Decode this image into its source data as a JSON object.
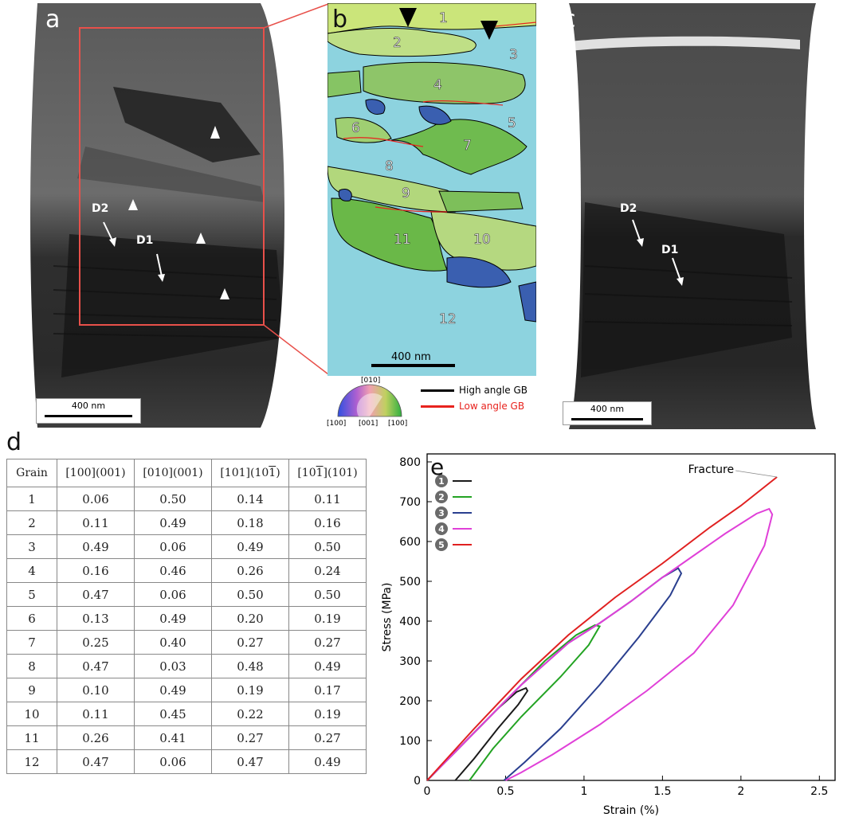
{
  "panel_a": {
    "label": "a",
    "arrows": [
      "D2",
      "D1"
    ],
    "scale_bar": "400 nm"
  },
  "panel_b": {
    "label": "b",
    "grains": [
      "1",
      "2",
      "3",
      "4",
      "5",
      "6",
      "7",
      "8",
      "9",
      "10",
      "11",
      "12"
    ],
    "scale_bar": "400 nm",
    "ipf_labels": {
      "top": "[010]",
      "left": "[100]",
      "center": "[001]",
      "right": "[100]"
    },
    "legend": {
      "high": "High angle GB",
      "low": "Low angle GB"
    },
    "colors": {
      "high": "#000000",
      "low": "#e8231e"
    }
  },
  "panel_c": {
    "label": "c",
    "arrows": [
      "D2",
      "D1"
    ],
    "scale_bar": "400 nm"
  },
  "panel_d": {
    "label": "d",
    "headers": [
      "Grain",
      "[100](001)",
      "[010](001)",
      "[101](101)",
      "[101](101)"
    ],
    "rows": [
      [
        "1",
        "0.06",
        "0.50",
        "0.14",
        "0.11"
      ],
      [
        "2",
        "0.11",
        "0.49",
        "0.18",
        "0.16"
      ],
      [
        "3",
        "0.49",
        "0.06",
        "0.49",
        "0.50"
      ],
      [
        "4",
        "0.16",
        "0.46",
        "0.26",
        "0.24"
      ],
      [
        "5",
        "0.47",
        "0.06",
        "0.50",
        "0.50"
      ],
      [
        "6",
        "0.13",
        "0.49",
        "0.20",
        "0.19"
      ],
      [
        "7",
        "0.25",
        "0.40",
        "0.27",
        "0.27"
      ],
      [
        "8",
        "0.47",
        "0.03",
        "0.48",
        "0.49"
      ],
      [
        "9",
        "0.10",
        "0.49",
        "0.19",
        "0.17"
      ],
      [
        "10",
        "0.11",
        "0.45",
        "0.22",
        "0.19"
      ],
      [
        "11",
        "0.26",
        "0.41",
        "0.27",
        "0.27"
      ],
      [
        "12",
        "0.47",
        "0.06",
        "0.47",
        "0.49"
      ]
    ]
  },
  "chart_data": {
    "label": "e",
    "type": "line",
    "xlabel": "Strain (%)",
    "ylabel": "Stress (MPa)",
    "xlim": [
      0,
      2.6
    ],
    "ylim": [
      0,
      820
    ],
    "xticks": [
      "0",
      "0.5",
      "1",
      "1.5",
      "2",
      "2.5"
    ],
    "yticks": [
      "0",
      "100",
      "200",
      "300",
      "400",
      "500",
      "600",
      "700",
      "800"
    ],
    "annotation": "Fracture",
    "series": [
      {
        "name": "1",
        "color": "#1a1a1a",
        "x": [
          0,
          0.15,
          0.3,
          0.45,
          0.57,
          0.63,
          0.64,
          0.58,
          0.45,
          0.3,
          0.18
        ],
        "y": [
          0,
          60,
          120,
          180,
          222,
          232,
          225,
          190,
          130,
          55,
          0
        ]
      },
      {
        "name": "2",
        "color": "#23a323",
        "x": [
          0,
          0.25,
          0.5,
          0.75,
          0.95,
          1.07,
          1.1,
          1.03,
          0.85,
          0.6,
          0.42,
          0.27
        ],
        "y": [
          0,
          100,
          200,
          300,
          365,
          390,
          387,
          340,
          260,
          160,
          80,
          0
        ]
      },
      {
        "name": "3",
        "color": "#2a3f8f",
        "x": [
          0,
          0.3,
          0.6,
          0.9,
          1.1,
          1.3,
          1.5,
          1.6,
          1.62,
          1.55,
          1.35,
          1.1,
          0.85,
          0.62,
          0.49
        ],
        "y": [
          0,
          120,
          240,
          345,
          395,
          450,
          510,
          533,
          520,
          465,
          360,
          240,
          130,
          45,
          0
        ]
      },
      {
        "name": "4",
        "color": "#e040d8",
        "x": [
          0,
          0.3,
          0.6,
          0.9,
          1.1,
          1.3,
          1.5,
          1.7,
          1.9,
          2.1,
          2.18,
          2.2,
          2.15,
          1.95,
          1.7,
          1.4,
          1.1,
          0.8,
          0.6,
          0.5
        ],
        "y": [
          0,
          120,
          240,
          345,
          395,
          450,
          510,
          565,
          620,
          670,
          682,
          668,
          590,
          440,
          320,
          225,
          140,
          65,
          20,
          0
        ]
      },
      {
        "name": "5",
        "color": "#e02020",
        "x": [
          0,
          0.3,
          0.6,
          0.9,
          1.2,
          1.5,
          1.8,
          2.0,
          2.23
        ],
        "y": [
          0,
          130,
          255,
          365,
          460,
          545,
          635,
          690,
          762
        ]
      }
    ]
  }
}
